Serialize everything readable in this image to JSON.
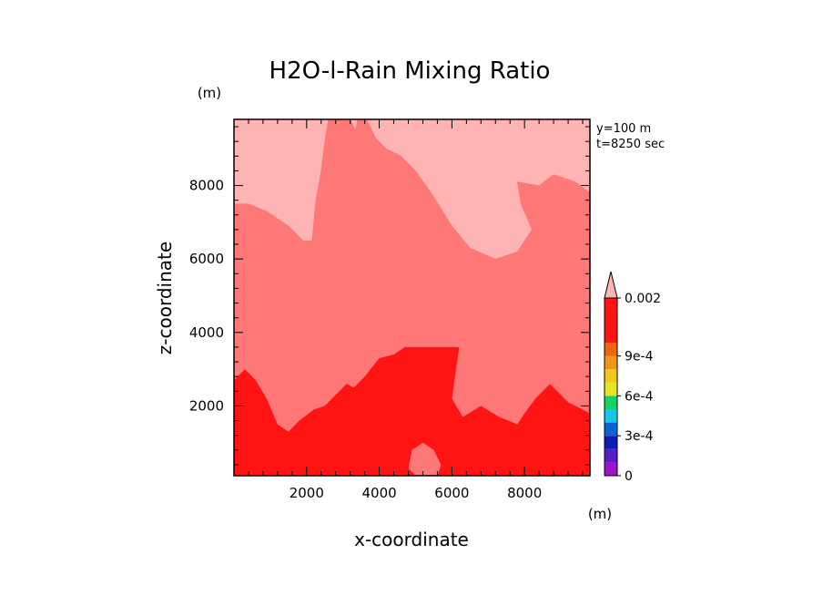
{
  "chart_data": {
    "type": "heatmap",
    "title": "H2O-l-Rain Mixing Ratio",
    "xlabel": "x-coordinate",
    "ylabel": "z-coordinate",
    "x_unit": "(m)",
    "y_unit": "(m)",
    "annotations": [
      "y=100 m",
      "t=8250 sec"
    ],
    "xlim": [
      0,
      9800
    ],
    "ylim": [
      100,
      9800
    ],
    "x_ticks": [
      2000,
      4000,
      6000,
      8000
    ],
    "y_ticks": [
      2000,
      4000,
      6000,
      8000
    ],
    "x_tick_labels": [
      "2000",
      "4000",
      "6000",
      "8000"
    ],
    "y_tick_labels": [
      "2000",
      "4000",
      "6000",
      "8000"
    ],
    "colorbar": {
      "levels": [
        0,
        0.0001,
        0.0002,
        0.0003,
        0.0004,
        0.0005,
        0.0006,
        0.0007,
        0.0008,
        0.0009,
        0.001,
        0.002
      ],
      "colors": [
        "#9a14c8",
        "#5a1ec8",
        "#0a1eb4",
        "#0a64d2",
        "#14c8f0",
        "#14d264",
        "#e6e61e",
        "#f0c81e",
        "#f09614",
        "#f06414",
        "#ff1414",
        "#ff7878",
        "#ffb4b4"
      ],
      "labels": [
        {
          "value": 0,
          "text": "0"
        },
        {
          "value": 0.0003,
          "text": "3e-4"
        },
        {
          "value": 0.0006,
          "text": "6e-4"
        },
        {
          "value": 0.0009,
          "text": "9e-4"
        },
        {
          "value": 0.002,
          "text": "0.002"
        }
      ]
    },
    "regions": [
      {
        "level_range": [
          0.002,
          null
        ],
        "color": "#ffb4b4",
        "polygons": [
          [
            [
              0,
              9800
            ],
            [
              2600,
              9800
            ],
            [
              2500,
              9200
            ],
            [
              2400,
              8400
            ],
            [
              2250,
              7600
            ],
            [
              2150,
              6500
            ],
            [
              1900,
              6500
            ],
            [
              1500,
              6900
            ],
            [
              900,
              7300
            ],
            [
              400,
              7500
            ],
            [
              0,
              7500
            ]
          ],
          [
            [
              3200,
              9800
            ],
            [
              3400,
              9800
            ],
            [
              3350,
              9500
            ]
          ],
          [
            [
              3650,
              9800
            ],
            [
              9800,
              9800
            ],
            [
              9800,
              7800
            ],
            [
              9400,
              8100
            ],
            [
              8800,
              8300
            ],
            [
              8400,
              8000
            ],
            [
              7800,
              8100
            ],
            [
              7900,
              7500
            ],
            [
              8200,
              6800
            ],
            [
              7800,
              6200
            ],
            [
              7200,
              6000
            ],
            [
              6500,
              6300
            ],
            [
              6000,
              6900
            ],
            [
              5500,
              7700
            ],
            [
              5000,
              8400
            ],
            [
              4600,
              8800
            ],
            [
              4200,
              9000
            ],
            [
              3900,
              9300
            ]
          ]
        ]
      },
      {
        "level_range": [
          0.001,
          0.002
        ],
        "color": "#ff7878",
        "polygons": [
          [
            [
              0,
              7500
            ],
            [
              400,
              7500
            ],
            [
              900,
              7300
            ],
            [
              1500,
              6900
            ],
            [
              1900,
              6500
            ],
            [
              2150,
              6500
            ],
            [
              2250,
              7600
            ],
            [
              2400,
              8400
            ],
            [
              2500,
              9200
            ],
            [
              2600,
              9800
            ],
            [
              3200,
              9800
            ],
            [
              3350,
              9500
            ],
            [
              3400,
              9800
            ],
            [
              3650,
              9800
            ],
            [
              3900,
              9300
            ],
            [
              4200,
              9000
            ],
            [
              4600,
              8800
            ],
            [
              5000,
              8400
            ],
            [
              5500,
              7700
            ],
            [
              6000,
              6900
            ],
            [
              6500,
              6300
            ],
            [
              7200,
              6000
            ],
            [
              7800,
              6200
            ],
            [
              8200,
              6800
            ],
            [
              7900,
              7500
            ],
            [
              7800,
              8100
            ],
            [
              8400,
              8000
            ],
            [
              8800,
              8300
            ],
            [
              9400,
              8100
            ],
            [
              9800,
              7800
            ],
            [
              9800,
              1800
            ],
            [
              9200,
              2100
            ],
            [
              8700,
              2600
            ],
            [
              8300,
              2200
            ],
            [
              8000,
              1800
            ],
            [
              7800,
              1500
            ],
            [
              7300,
              1700
            ],
            [
              6800,
              2000
            ],
            [
              6300,
              1700
            ],
            [
              6000,
              2200
            ],
            [
              6200,
              3600
            ],
            [
              5700,
              3600
            ],
            [
              5200,
              3600
            ],
            [
              4700,
              3600
            ],
            [
              4400,
              3400
            ],
            [
              4000,
              3300
            ],
            [
              3600,
              2800
            ],
            [
              3300,
              2500
            ],
            [
              3100,
              2600
            ],
            [
              2800,
              2300
            ],
            [
              2500,
              2000
            ],
            [
              2200,
              1900
            ],
            [
              1800,
              1600
            ],
            [
              1500,
              1300
            ],
            [
              1200,
              1500
            ],
            [
              900,
              2200
            ],
            [
              600,
              2700
            ],
            [
              300,
              3000
            ],
            [
              0,
              2700
            ]
          ]
        ]
      },
      {
        "level_range": [
          0.001,
          0.002
        ],
        "color": "#ff7878",
        "polygons": [
          [
            [
              4800,
              300
            ],
            [
              4900,
              800
            ],
            [
              5200,
              1000
            ],
            [
              5500,
              800
            ],
            [
              5700,
              400
            ],
            [
              5600,
              100
            ],
            [
              5000,
              100
            ]
          ]
        ]
      }
    ],
    "base_region": {
      "level_range": [
        0.001,
        0.002
      ],
      "color": "#ff1414"
    }
  }
}
